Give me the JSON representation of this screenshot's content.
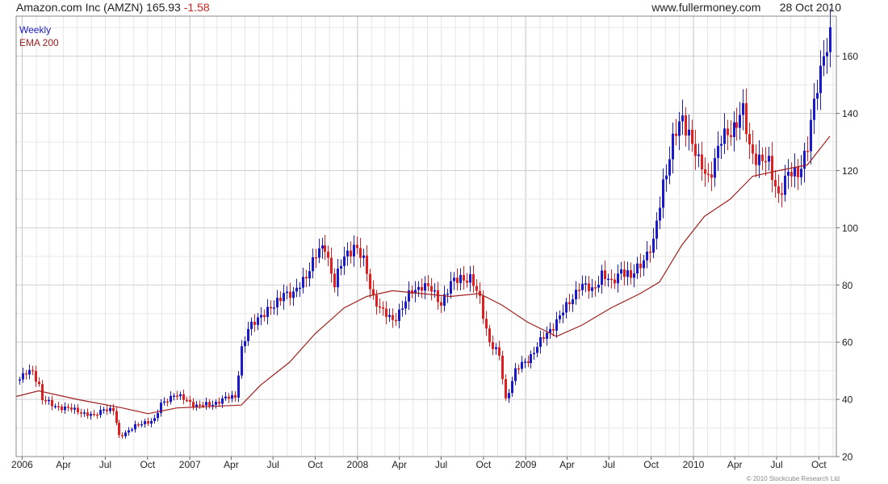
{
  "header": {
    "title": "Amazon.com Inc (AMZN) 165.93",
    "change": "-1.58",
    "site": "www.fullermoney.com",
    "date": "28 Oct 2010"
  },
  "legend": {
    "series1": "Weekly",
    "series2": "EMA 200"
  },
  "copyright": "© 2010 Stockcube Research Ltd",
  "colors": {
    "up": "#1a1acc",
    "down": "#e02020",
    "ema": "#a02020",
    "grid": "#d6d6d6",
    "frame": "#888888"
  },
  "chart_data": {
    "type": "line",
    "title": "Amazon.com Inc (AMZN) 165.93 -1.58",
    "xlabel": "",
    "ylabel": "",
    "ylim": [
      20,
      174
    ],
    "xlim": [
      "2005-12-19",
      "2010-11-08"
    ],
    "grid": true,
    "legend": "top-left",
    "y_ticks": [
      20,
      40,
      60,
      80,
      100,
      120,
      140,
      160
    ],
    "x_ticks": [
      {
        "date": "2006-01-01",
        "label": "2006"
      },
      {
        "date": "2006-04-01",
        "label": "Apr"
      },
      {
        "date": "2006-07-01",
        "label": "Jul"
      },
      {
        "date": "2006-10-01",
        "label": "Oct"
      },
      {
        "date": "2007-01-01",
        "label": "2007"
      },
      {
        "date": "2007-04-01",
        "label": "Apr"
      },
      {
        "date": "2007-07-01",
        "label": "Jul"
      },
      {
        "date": "2007-10-01",
        "label": "Oct"
      },
      {
        "date": "2008-01-01",
        "label": "2008"
      },
      {
        "date": "2008-04-01",
        "label": "Apr"
      },
      {
        "date": "2008-07-01",
        "label": "Jul"
      },
      {
        "date": "2008-10-01",
        "label": "Oct"
      },
      {
        "date": "2009-01-01",
        "label": "2009"
      },
      {
        "date": "2009-04-01",
        "label": "Apr"
      },
      {
        "date": "2009-07-01",
        "label": "Jul"
      },
      {
        "date": "2009-10-01",
        "label": "Oct"
      },
      {
        "date": "2010-01-01",
        "label": "2010"
      },
      {
        "date": "2010-04-01",
        "label": "Apr"
      },
      {
        "date": "2010-07-01",
        "label": "Jul"
      },
      {
        "date": "2010-10-01",
        "label": "Oct"
      }
    ],
    "series": [
      {
        "name": "Weekly",
        "kind": "price",
        "points": [
          [
            "2005-12-26",
            47
          ],
          [
            "2006-01-09",
            49
          ],
          [
            "2006-01-23",
            50
          ],
          [
            "2006-02-06",
            45
          ],
          [
            "2006-02-13",
            40
          ],
          [
            "2006-03-06",
            38
          ],
          [
            "2006-04-03",
            37
          ],
          [
            "2006-05-01",
            36
          ],
          [
            "2006-06-05",
            34
          ],
          [
            "2006-06-26",
            37
          ],
          [
            "2006-07-17",
            36
          ],
          [
            "2006-07-31",
            27
          ],
          [
            "2006-08-28",
            30
          ],
          [
            "2006-09-25",
            32
          ],
          [
            "2006-10-16",
            33
          ],
          [
            "2006-10-30",
            38
          ],
          [
            "2006-11-27",
            42
          ],
          [
            "2006-12-18",
            40
          ],
          [
            "2007-01-15",
            38
          ],
          [
            "2007-02-12",
            38
          ],
          [
            "2007-03-12",
            40
          ],
          [
            "2007-04-09",
            41
          ],
          [
            "2007-04-23",
            58
          ],
          [
            "2007-05-07",
            64
          ],
          [
            "2007-06-04",
            70
          ],
          [
            "2007-07-02",
            72
          ],
          [
            "2007-07-23",
            78
          ],
          [
            "2007-08-13",
            76
          ],
          [
            "2007-09-10",
            84
          ],
          [
            "2007-10-01",
            90
          ],
          [
            "2007-10-22",
            94
          ],
          [
            "2007-11-12",
            80
          ],
          [
            "2007-12-03",
            90
          ],
          [
            "2007-12-24",
            94
          ],
          [
            "2008-01-14",
            88
          ],
          [
            "2008-02-04",
            76
          ],
          [
            "2008-02-25",
            70
          ],
          [
            "2008-03-17",
            68
          ],
          [
            "2008-04-07",
            72
          ],
          [
            "2008-04-28",
            78
          ],
          [
            "2008-05-19",
            80
          ],
          [
            "2008-06-09",
            78
          ],
          [
            "2008-06-30",
            74
          ],
          [
            "2008-07-21",
            80
          ],
          [
            "2008-08-11",
            83
          ],
          [
            "2008-09-01",
            82
          ],
          [
            "2008-09-22",
            75
          ],
          [
            "2008-10-13",
            60
          ],
          [
            "2008-11-03",
            55
          ],
          [
            "2008-11-17",
            40
          ],
          [
            "2008-12-08",
            50
          ],
          [
            "2009-01-05",
            54
          ],
          [
            "2009-02-02",
            60
          ],
          [
            "2009-03-02",
            66
          ],
          [
            "2009-03-30",
            72
          ],
          [
            "2009-04-27",
            80
          ],
          [
            "2009-05-25",
            78
          ],
          [
            "2009-06-15",
            84
          ],
          [
            "2009-07-06",
            80
          ],
          [
            "2009-07-27",
            86
          ],
          [
            "2009-08-17",
            82
          ],
          [
            "2009-09-07",
            88
          ],
          [
            "2009-10-05",
            94
          ],
          [
            "2009-10-26",
            116
          ],
          [
            "2009-11-16",
            130
          ],
          [
            "2009-12-07",
            138
          ],
          [
            "2009-12-21",
            134
          ],
          [
            "2010-01-11",
            122
          ],
          [
            "2010-02-01",
            118
          ],
          [
            "2010-03-01",
            130
          ],
          [
            "2010-03-29",
            136
          ],
          [
            "2010-04-19",
            140
          ],
          [
            "2010-05-03",
            128
          ],
          [
            "2010-05-24",
            124
          ],
          [
            "2010-06-14",
            122
          ],
          [
            "2010-07-05",
            112
          ],
          [
            "2010-07-26",
            118
          ],
          [
            "2010-08-16",
            120
          ],
          [
            "2010-09-06",
            128
          ],
          [
            "2010-09-27",
            150
          ],
          [
            "2010-10-11",
            162
          ],
          [
            "2010-10-25",
            166
          ]
        ]
      },
      {
        "name": "EMA 200",
        "kind": "line",
        "points": [
          [
            "2005-12-19",
            41
          ],
          [
            "2006-02-06",
            43
          ],
          [
            "2006-05-01",
            40
          ],
          [
            "2006-08-07",
            37
          ],
          [
            "2006-10-02",
            35
          ],
          [
            "2006-12-04",
            37
          ],
          [
            "2007-04-23",
            38
          ],
          [
            "2007-06-04",
            45
          ],
          [
            "2007-08-06",
            53
          ],
          [
            "2007-10-01",
            63
          ],
          [
            "2007-12-03",
            72
          ],
          [
            "2008-01-21",
            76
          ],
          [
            "2008-03-17",
            78
          ],
          [
            "2008-05-19",
            77
          ],
          [
            "2008-07-21",
            76
          ],
          [
            "2008-09-22",
            77
          ],
          [
            "2008-11-10",
            73
          ],
          [
            "2009-01-05",
            67
          ],
          [
            "2009-03-09",
            62
          ],
          [
            "2009-05-04",
            66
          ],
          [
            "2009-07-06",
            72
          ],
          [
            "2009-09-07",
            77
          ],
          [
            "2009-10-19",
            81
          ],
          [
            "2009-12-07",
            94
          ],
          [
            "2010-01-25",
            104
          ],
          [
            "2010-03-22",
            110
          ],
          [
            "2010-05-10",
            118
          ],
          [
            "2010-07-05",
            120
          ],
          [
            "2010-09-06",
            122
          ],
          [
            "2010-10-25",
            132
          ]
        ]
      }
    ]
  }
}
